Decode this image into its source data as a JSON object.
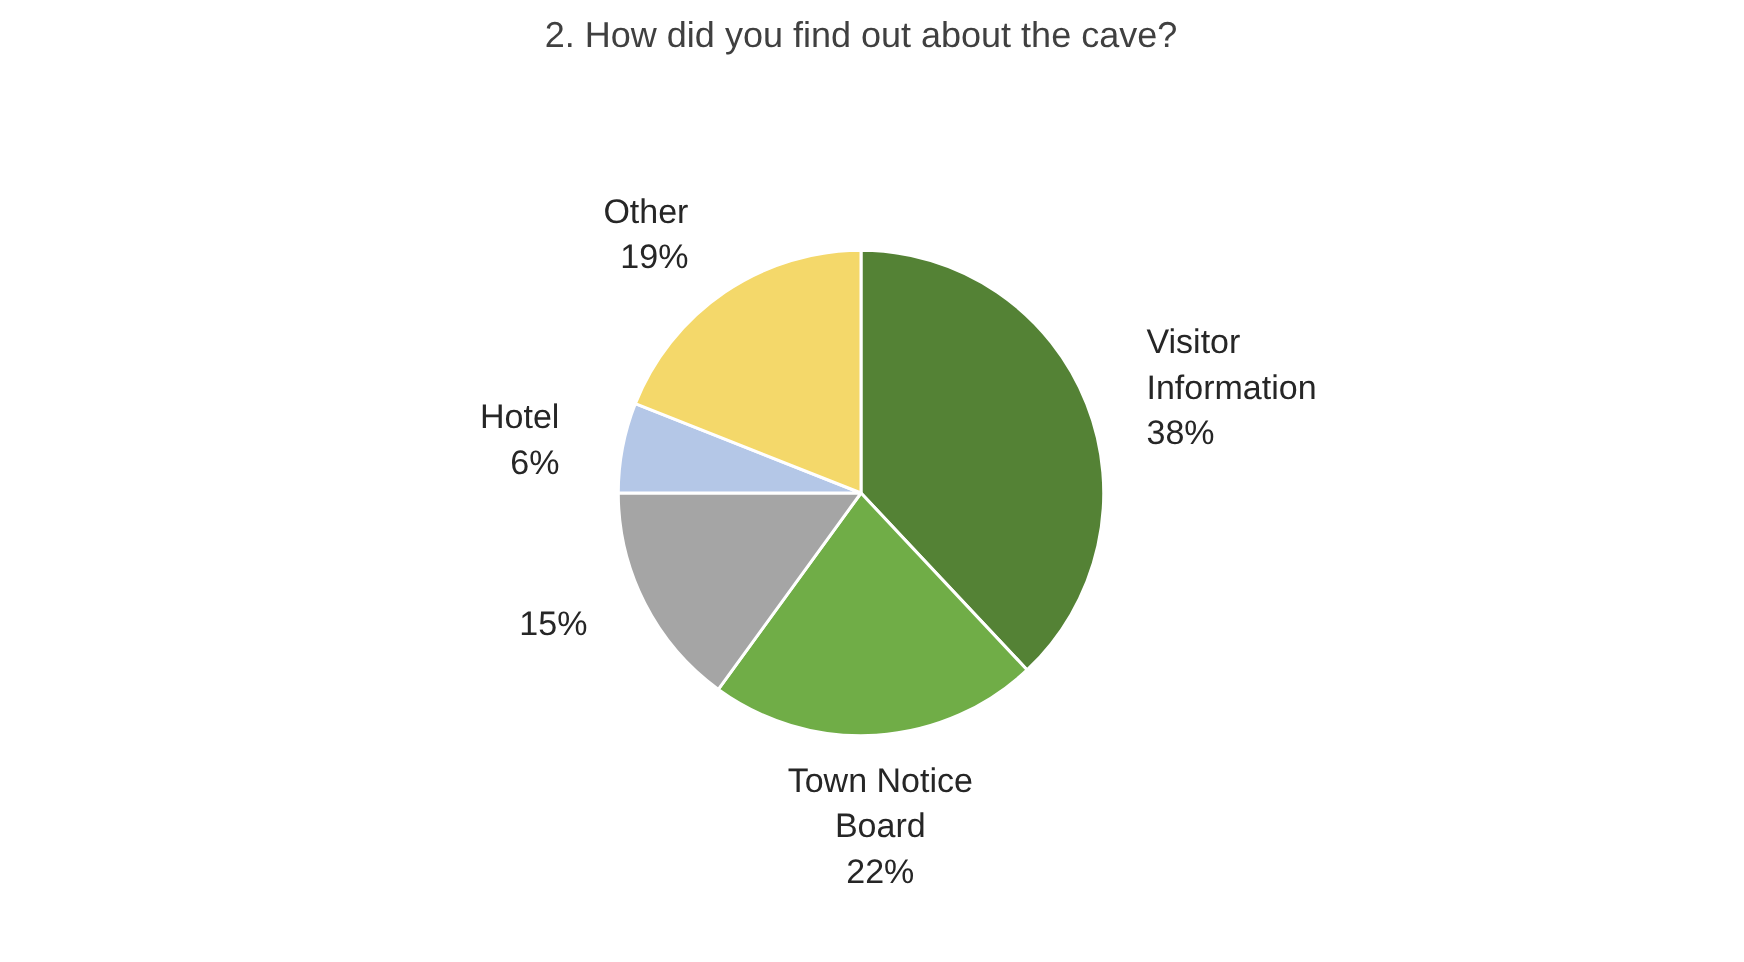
{
  "chart_data": {
    "type": "pie",
    "title": "2. How did you find out about the cave?",
    "categories": [
      "Visitor Information",
      "Town Notice Board",
      null,
      "Hotel",
      "Other"
    ],
    "values": [
      38,
      22,
      15,
      6,
      19
    ],
    "value_labels": [
      "38%",
      "22%",
      "15%",
      "6%",
      "19%"
    ],
    "colors": [
      "#548235",
      "#70ad47",
      "#a5a5a5",
      "#b4c7e7",
      "#f4d86a"
    ]
  }
}
